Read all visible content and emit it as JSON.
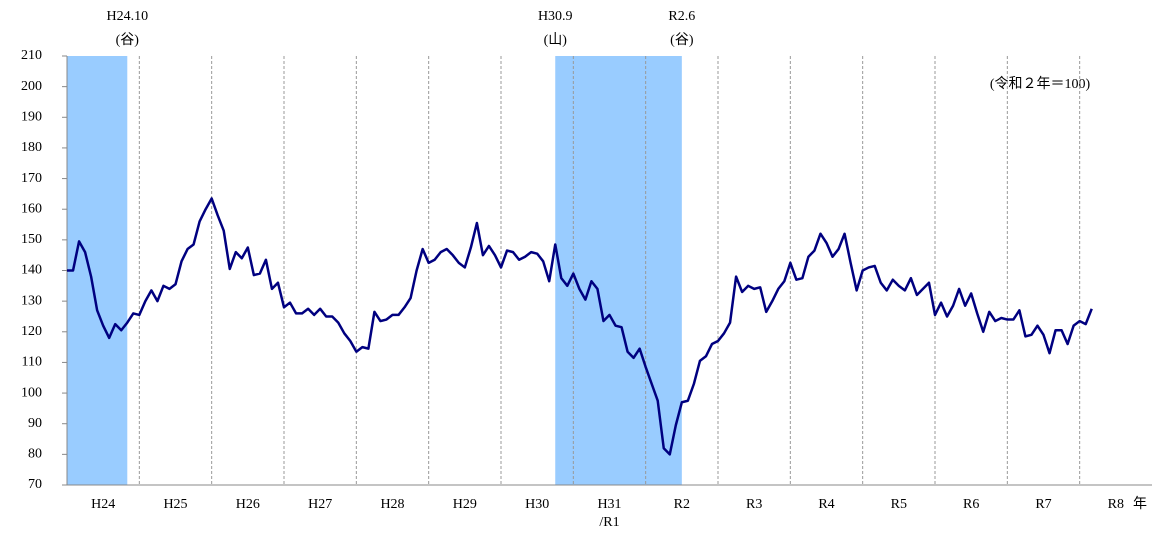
{
  "chart_data": {
    "type": "line",
    "note": "(令和２年＝100)",
    "xlabel": "年",
    "xlim": [
      0,
      180
    ],
    "xticks": [
      {
        "value": 6,
        "label": [
          "H24"
        ]
      },
      {
        "value": 18,
        "label": [
          "H25"
        ]
      },
      {
        "value": 30,
        "label": [
          "H26"
        ]
      },
      {
        "value": 42,
        "label": [
          "H27"
        ]
      },
      {
        "value": 54,
        "label": [
          "H28"
        ]
      },
      {
        "value": 66,
        "label": [
          "H29"
        ]
      },
      {
        "value": 78,
        "label": [
          "H30"
        ]
      },
      {
        "value": 90,
        "label": [
          "H31",
          "/R1"
        ]
      },
      {
        "value": 102,
        "label": [
          "R2"
        ]
      },
      {
        "value": 114,
        "label": [
          "R3"
        ]
      },
      {
        "value": 126,
        "label": [
          "R4"
        ]
      },
      {
        "value": 138,
        "label": [
          "R5"
        ]
      },
      {
        "value": 150,
        "label": [
          "R6"
        ]
      },
      {
        "value": 162,
        "label": [
          "R7"
        ]
      },
      {
        "value": 174,
        "label": [
          "R8"
        ]
      }
    ],
    "xgrid": [
      12,
      24,
      36,
      48,
      60,
      72,
      84,
      96,
      108,
      120,
      132,
      144,
      156,
      168
    ],
    "ylim": [
      70,
      210
    ],
    "yticks": [
      70,
      80,
      90,
      100,
      110,
      120,
      130,
      140,
      150,
      160,
      170,
      180,
      190,
      200,
      210
    ],
    "shading": [
      {
        "range": [
          0,
          10
        ],
        "label": [
          "H24.10",
          "(谷)"
        ],
        "label_at": 10
      },
      {
        "range": [
          81,
          102
        ],
        "label": [
          "H30.9",
          "(山)"
        ],
        "label_at": 81
      },
      {
        "range": [
          81,
          102
        ],
        "label": [
          "R2.6",
          "(谷)"
        ],
        "label_at": 102
      }
    ],
    "shade_color": "#99ccff",
    "series": [
      {
        "color": "#000080",
        "x": [
          0,
          1,
          2,
          3,
          4,
          5,
          6,
          7,
          8,
          9,
          10,
          11,
          12,
          13,
          14,
          15,
          16,
          17,
          18,
          19,
          20,
          21,
          22,
          23,
          24,
          25,
          26,
          27,
          28,
          29,
          30,
          31,
          32,
          33,
          34,
          35,
          36,
          37,
          38,
          39,
          40,
          41,
          42,
          43,
          44,
          45,
          46,
          47,
          48,
          49,
          50,
          51,
          52,
          53,
          54,
          55,
          56,
          57,
          58,
          59,
          60,
          61,
          62,
          63,
          64,
          65,
          66,
          67,
          68,
          69,
          70,
          71,
          72,
          73,
          74,
          75,
          76,
          77,
          78,
          79,
          80,
          81,
          82,
          83,
          84,
          85,
          86,
          87,
          88,
          89,
          90,
          91,
          92,
          93,
          94,
          95,
          96,
          97,
          98,
          99,
          100,
          101,
          102,
          103,
          104,
          105,
          106,
          107,
          108,
          109,
          110,
          111,
          112,
          113,
          114,
          115,
          116,
          117,
          118,
          119,
          120,
          121,
          122,
          123,
          124,
          125,
          126,
          127,
          128,
          129,
          130,
          131,
          132,
          133,
          134,
          135,
          136,
          137,
          138,
          139,
          140,
          141,
          142,
          143,
          144,
          145,
          146,
          147,
          148,
          149,
          150,
          151,
          152,
          153,
          154,
          155,
          156,
          157,
          158,
          159,
          160,
          161,
          162,
          163,
          164,
          165,
          166,
          167,
          168,
          169,
          170
        ],
        "values": [
          140,
          140,
          149.5,
          146,
          138,
          127,
          122,
          118,
          122.5,
          120.5,
          123,
          126,
          125.5,
          130,
          133.5,
          130,
          135,
          134,
          135.5,
          143,
          147,
          148.5,
          156,
          160,
          163.5,
          158,
          153,
          140.5,
          146,
          144,
          147.5,
          138.5,
          139,
          143.5,
          134,
          136,
          128,
          129.5,
          126,
          126,
          127.5,
          125.5,
          127.5,
          125,
          125,
          123,
          119.5,
          117,
          113.5,
          115,
          114.5,
          126.5,
          123.5,
          124,
          125.5,
          125.5,
          128,
          131,
          140,
          147,
          142.5,
          143.5,
          146,
          147,
          145,
          142.5,
          141,
          147.5,
          155.5,
          145,
          148,
          145,
          141,
          146.5,
          146,
          143.5,
          144.5,
          146,
          145.5,
          143,
          136.5,
          148.5,
          137.5,
          135,
          139,
          134,
          130.5,
          136.5,
          134,
          123.5,
          125.5,
          122,
          121.5,
          113.5,
          111.5,
          114.5,
          108.5,
          103,
          97.5,
          82,
          80,
          89.5,
          97,
          97.5,
          103,
          110.5,
          112,
          116,
          117,
          119.5,
          123,
          138,
          133,
          135,
          134,
          134.5,
          126.5,
          130,
          134,
          136.5,
          142.5,
          137,
          137.5,
          144.5,
          146.5,
          152,
          149,
          144.5,
          147,
          152,
          142.5,
          133.5,
          140,
          141,
          141.5,
          136,
          133.5,
          137,
          135,
          133.5,
          137.5,
          132,
          134,
          136,
          125.5,
          129.5,
          125,
          128.5,
          134,
          128.5,
          132.5,
          126,
          120,
          126.5,
          123.5,
          124.5,
          124,
          124,
          127,
          118.5,
          119,
          122,
          119,
          113,
          120.5,
          120.5,
          116,
          122,
          123.5,
          122.5,
          127.5
        ]
      }
    ]
  }
}
